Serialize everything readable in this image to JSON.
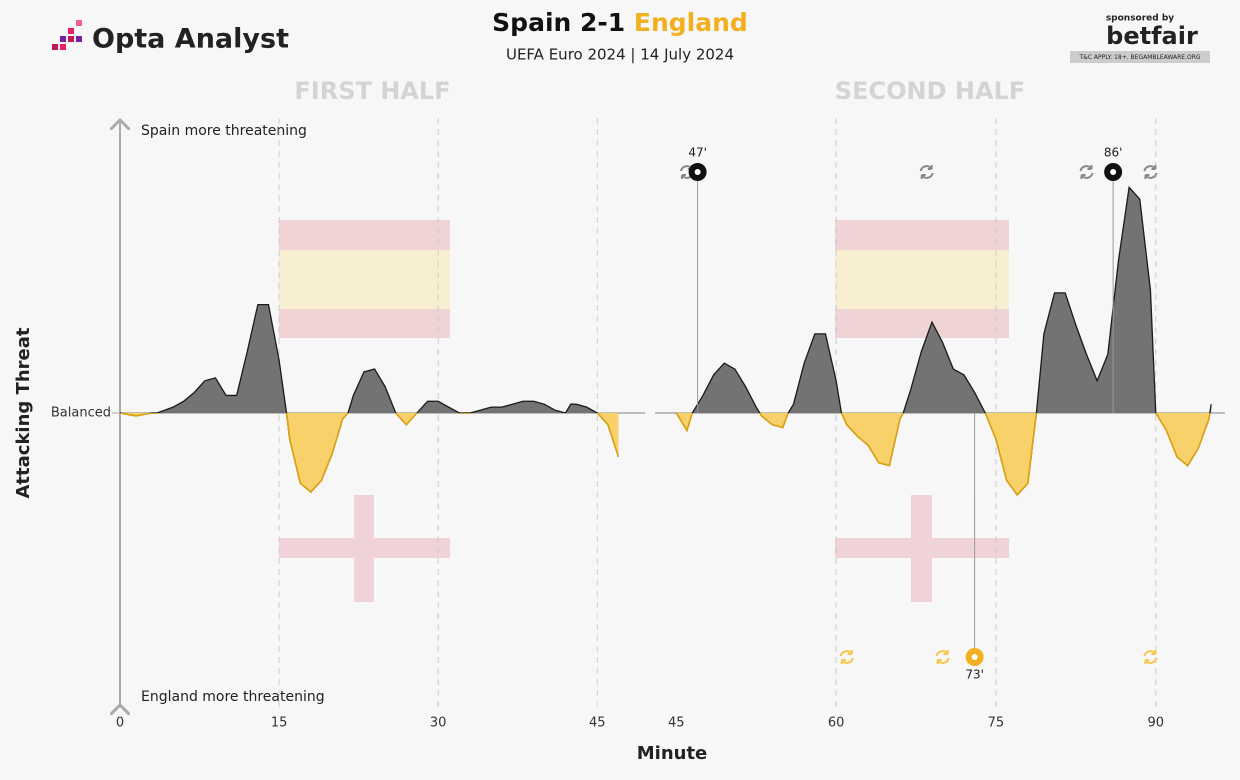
{
  "header": {
    "logo": "Opta Analyst",
    "title_home": "Spain 2-1",
    "title_away": "England",
    "subtitle": "UEFA Euro 2024 | 14 July 2024",
    "sponsor_top": "sponsored by",
    "sponsor": "betfair",
    "sponsor_note": "T&C APPLY. 18+. BEGAMBLEAWARE.ORG"
  },
  "chart_data": [
    {
      "type": "area",
      "title": "FIRST HALF",
      "ylabel": "Attacking Threat",
      "xlabel": "Minute",
      "top_note": "Spain more threatening",
      "bottom_note": "England more threatening",
      "pos_color": "#737373",
      "neg_color": "#f9d16b",
      "line_color": "#1a1a1a",
      "x": [
        0,
        1.5,
        3,
        3.5,
        5,
        6,
        7,
        8,
        9,
        10,
        11,
        12,
        13,
        14,
        15,
        15.7,
        16,
        17,
        18,
        19,
        20,
        21,
        21.5,
        22,
        23,
        24,
        25,
        26,
        27,
        28,
        29,
        30,
        31,
        32,
        33,
        34,
        35,
        36,
        37,
        38,
        39,
        40,
        41,
        42,
        42.5,
        43,
        44,
        45,
        46,
        47
      ],
      "values": [
        0,
        -1,
        0,
        0,
        2,
        4,
        7,
        11,
        12,
        6,
        6,
        21,
        37,
        37,
        18,
        0,
        -9,
        -24,
        -27,
        -23,
        -14,
        -2,
        0,
        6,
        14,
        15,
        9,
        0,
        -4,
        0,
        4,
        4,
        2,
        0,
        0,
        1,
        2,
        2,
        3,
        4,
        4,
        3,
        1,
        0,
        3,
        3,
        2,
        0,
        -4,
        -15
      ],
      "xlim": [
        0,
        49.5
      ],
      "xticks": [
        0,
        15,
        30,
        45
      ],
      "ylim": [
        -100,
        100
      ],
      "yticks": [
        {
          "value": 0,
          "label": "Balanced"
        }
      ],
      "grid": true
    },
    {
      "type": "area",
      "title": "SECOND HALF",
      "pos_color": "#737373",
      "neg_color": "#f9d16b",
      "line_color": "#1a1a1a",
      "x": [
        45,
        46,
        46.5,
        47.5,
        48.5,
        49.5,
        50.5,
        51.5,
        52.5,
        53,
        54,
        55,
        55.5,
        56,
        57,
        58,
        59,
        60,
        60.5,
        61,
        62,
        63,
        64,
        65,
        66,
        66.3,
        67,
        68,
        69,
        70,
        71,
        72,
        73,
        74,
        75,
        76,
        77,
        78,
        78.8,
        79.5,
        80.5,
        81.5,
        82.5,
        83.5,
        84.5,
        85.5,
        86.5,
        87.5,
        88.5,
        89.5,
        90,
        91,
        92,
        93,
        94,
        95,
        95.2
      ],
      "values": [
        0,
        -6,
        0,
        6,
        13,
        17,
        15,
        9,
        2,
        -1,
        -4,
        -5,
        0,
        3,
        17,
        27,
        27,
        11,
        0,
        -4,
        -8,
        -11,
        -17,
        -18,
        -2,
        0,
        8,
        21,
        31,
        24,
        15,
        13,
        7,
        0,
        -9,
        -23,
        -28,
        -24,
        0,
        27,
        41,
        41,
        30,
        20,
        11,
        20,
        52,
        77,
        73,
        42,
        0,
        -6,
        -15,
        -18,
        -12,
        -2,
        3
      ],
      "xlim": [
        43,
        96.5
      ],
      "xticks": [
        45,
        60,
        75,
        90
      ],
      "ylim": [
        -100,
        100
      ],
      "grid": true,
      "goals": [
        {
          "minute": 47,
          "label": "47'",
          "team": "Spain"
        },
        {
          "minute": 86,
          "label": "86'",
          "team": "Spain"
        },
        {
          "minute": 73,
          "label": "73'",
          "team": "England"
        }
      ],
      "spain_subs": [
        46,
        68.5,
        83.5,
        89.5
      ],
      "england_subs": [
        61,
        70,
        89.5
      ]
    }
  ]
}
